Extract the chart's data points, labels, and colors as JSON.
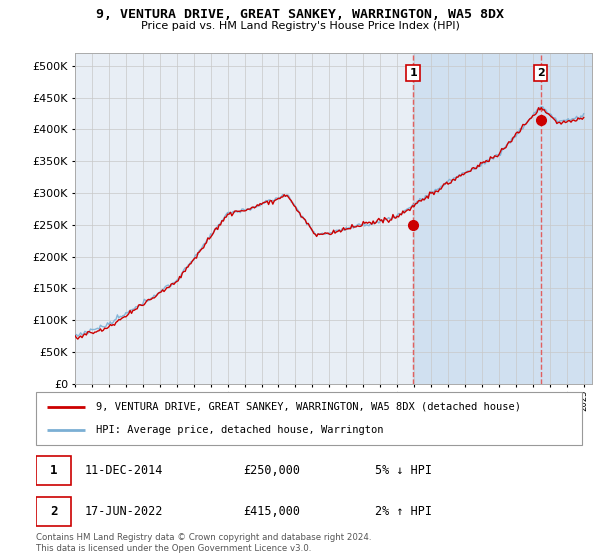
{
  "title": "9, VENTURA DRIVE, GREAT SANKEY, WARRINGTON, WA5 8DX",
  "subtitle": "Price paid vs. HM Land Registry's House Price Index (HPI)",
  "xlim_start": 1995.0,
  "xlim_end": 2025.5,
  "ylim_min": 0,
  "ylim_max": 520000,
  "yticks": [
    0,
    50000,
    100000,
    150000,
    200000,
    250000,
    300000,
    350000,
    400000,
    450000,
    500000
  ],
  "xtick_years": [
    1995,
    1996,
    1997,
    1998,
    1999,
    2000,
    2001,
    2002,
    2003,
    2004,
    2005,
    2006,
    2007,
    2008,
    2009,
    2010,
    2011,
    2012,
    2013,
    2014,
    2015,
    2016,
    2017,
    2018,
    2019,
    2020,
    2021,
    2022,
    2023,
    2024,
    2025
  ],
  "hpi_color": "#7bafd4",
  "price_color": "#cc0000",
  "bg_color_before": "#e8eef5",
  "bg_color_after": "#d0e0f0",
  "plot_bg": "#ffffff",
  "grid_color": "#c8c8c8",
  "sale1_x": 2014.94,
  "sale1_y": 250000,
  "sale1_label": "1",
  "sale2_x": 2022.46,
  "sale2_y": 415000,
  "sale2_label": "2",
  "legend_line1": "9, VENTURA DRIVE, GREAT SANKEY, WARRINGTON, WA5 8DX (detached house)",
  "legend_line2": "HPI: Average price, detached house, Warrington",
  "table_row1_num": "1",
  "table_row1_date": "11-DEC-2014",
  "table_row1_price": "£250,000",
  "table_row1_hpi": "5% ↓ HPI",
  "table_row2_num": "2",
  "table_row2_date": "17-JUN-2022",
  "table_row2_price": "£415,000",
  "table_row2_hpi": "2% ↑ HPI",
  "footnote": "Contains HM Land Registry data © Crown copyright and database right 2024.\nThis data is licensed under the Open Government Licence v3.0.",
  "vline_color": "#e06060"
}
